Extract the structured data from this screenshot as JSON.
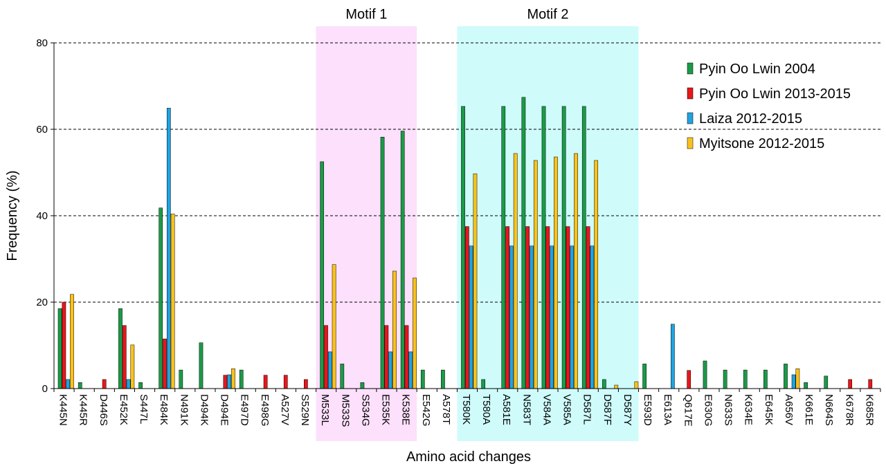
{
  "chart_data": {
    "type": "bar",
    "xlabel": "Amino acid changes",
    "ylabel": "Frequency (%)",
    "ylim": [
      0,
      80
    ],
    "yticks": [
      0,
      20,
      40,
      60,
      80
    ],
    "grid": "horizontal dashed",
    "legend_position": "top-right",
    "regions": [
      {
        "label": "Motif 1",
        "start": "M533L",
        "end": "K538E",
        "color": "#fde0fc"
      },
      {
        "label": "Motif 2",
        "start": "T580K",
        "end": "D587Y",
        "color": "#cffbfb"
      }
    ],
    "categories": [
      "K445N",
      "K445R",
      "D446S",
      "E452K",
      "S447L",
      "E484K",
      "N491K",
      "D494K",
      "D494E",
      "E497D",
      "E498G",
      "A527V",
      "S529N",
      "M533L",
      "M533S",
      "S534G",
      "E535K",
      "K538E",
      "E542G",
      "A578T",
      "T580K",
      "T580A",
      "A581E",
      "N583T",
      "V584A",
      "V585A",
      "D587L",
      "D587F",
      "D587Y",
      "E593D",
      "E613A",
      "Q617E",
      "E630G",
      "N633S",
      "K634E",
      "E645K",
      "A656V",
      "K661E",
      "N664S",
      "K678R",
      "K685R"
    ],
    "series": [
      {
        "name": "Pyin Oo Lwin 2004",
        "color": "#1a9b47",
        "values": [
          18.5,
          1.4,
          0,
          18.5,
          1.4,
          41.8,
          4.3,
          10.6,
          0,
          4.3,
          0,
          0,
          0,
          52.5,
          5.7,
          1.4,
          58.2,
          59.6,
          4.3,
          4.3,
          65.3,
          2.1,
          65.3,
          67.4,
          65.3,
          65.3,
          65.3,
          2.1,
          0,
          5.7,
          0,
          0,
          6.4,
          4.3,
          4.3,
          4.3,
          5.7,
          1.4,
          2.9,
          0,
          0
        ]
      },
      {
        "name": "Pyin Oo Lwin 2013-2015",
        "color": "#e8161b",
        "values": [
          20,
          0,
          2.1,
          14.6,
          0,
          11.5,
          0,
          0,
          3.1,
          0,
          3.1,
          3.1,
          2.1,
          14.6,
          0,
          0,
          14.6,
          14.6,
          0,
          0,
          37.5,
          0,
          37.5,
          37.5,
          37.5,
          37.5,
          37.5,
          0,
          0,
          0,
          0,
          4.2,
          0,
          0,
          0,
          0,
          0,
          0,
          0,
          2.1,
          2.1
        ]
      },
      {
        "name": "Laiza 2012-2015",
        "color": "#1fa3e0",
        "values": [
          2.1,
          0,
          0,
          2.1,
          0,
          64.9,
          0,
          0,
          3.2,
          0,
          0,
          0,
          0,
          8.5,
          0,
          0,
          8.5,
          8.5,
          0,
          0,
          33,
          0,
          33,
          33,
          33,
          33,
          33,
          0,
          0,
          0,
          14.9,
          0,
          0,
          0,
          0,
          0,
          3.2,
          0,
          0,
          0,
          0
        ]
      },
      {
        "name": "Myitsone 2012-2015",
        "color": "#f9c21a",
        "values": [
          21.8,
          0,
          0,
          10.1,
          0,
          40.4,
          0,
          0,
          4.6,
          0,
          0,
          0,
          0,
          28.7,
          0,
          0,
          27.2,
          25.6,
          0,
          0,
          49.7,
          0,
          54.4,
          52.8,
          53.6,
          54.4,
          52.8,
          0.8,
          1.6,
          0,
          0,
          0,
          0,
          0,
          0,
          0,
          4.6,
          0,
          0,
          0,
          0
        ]
      }
    ]
  }
}
